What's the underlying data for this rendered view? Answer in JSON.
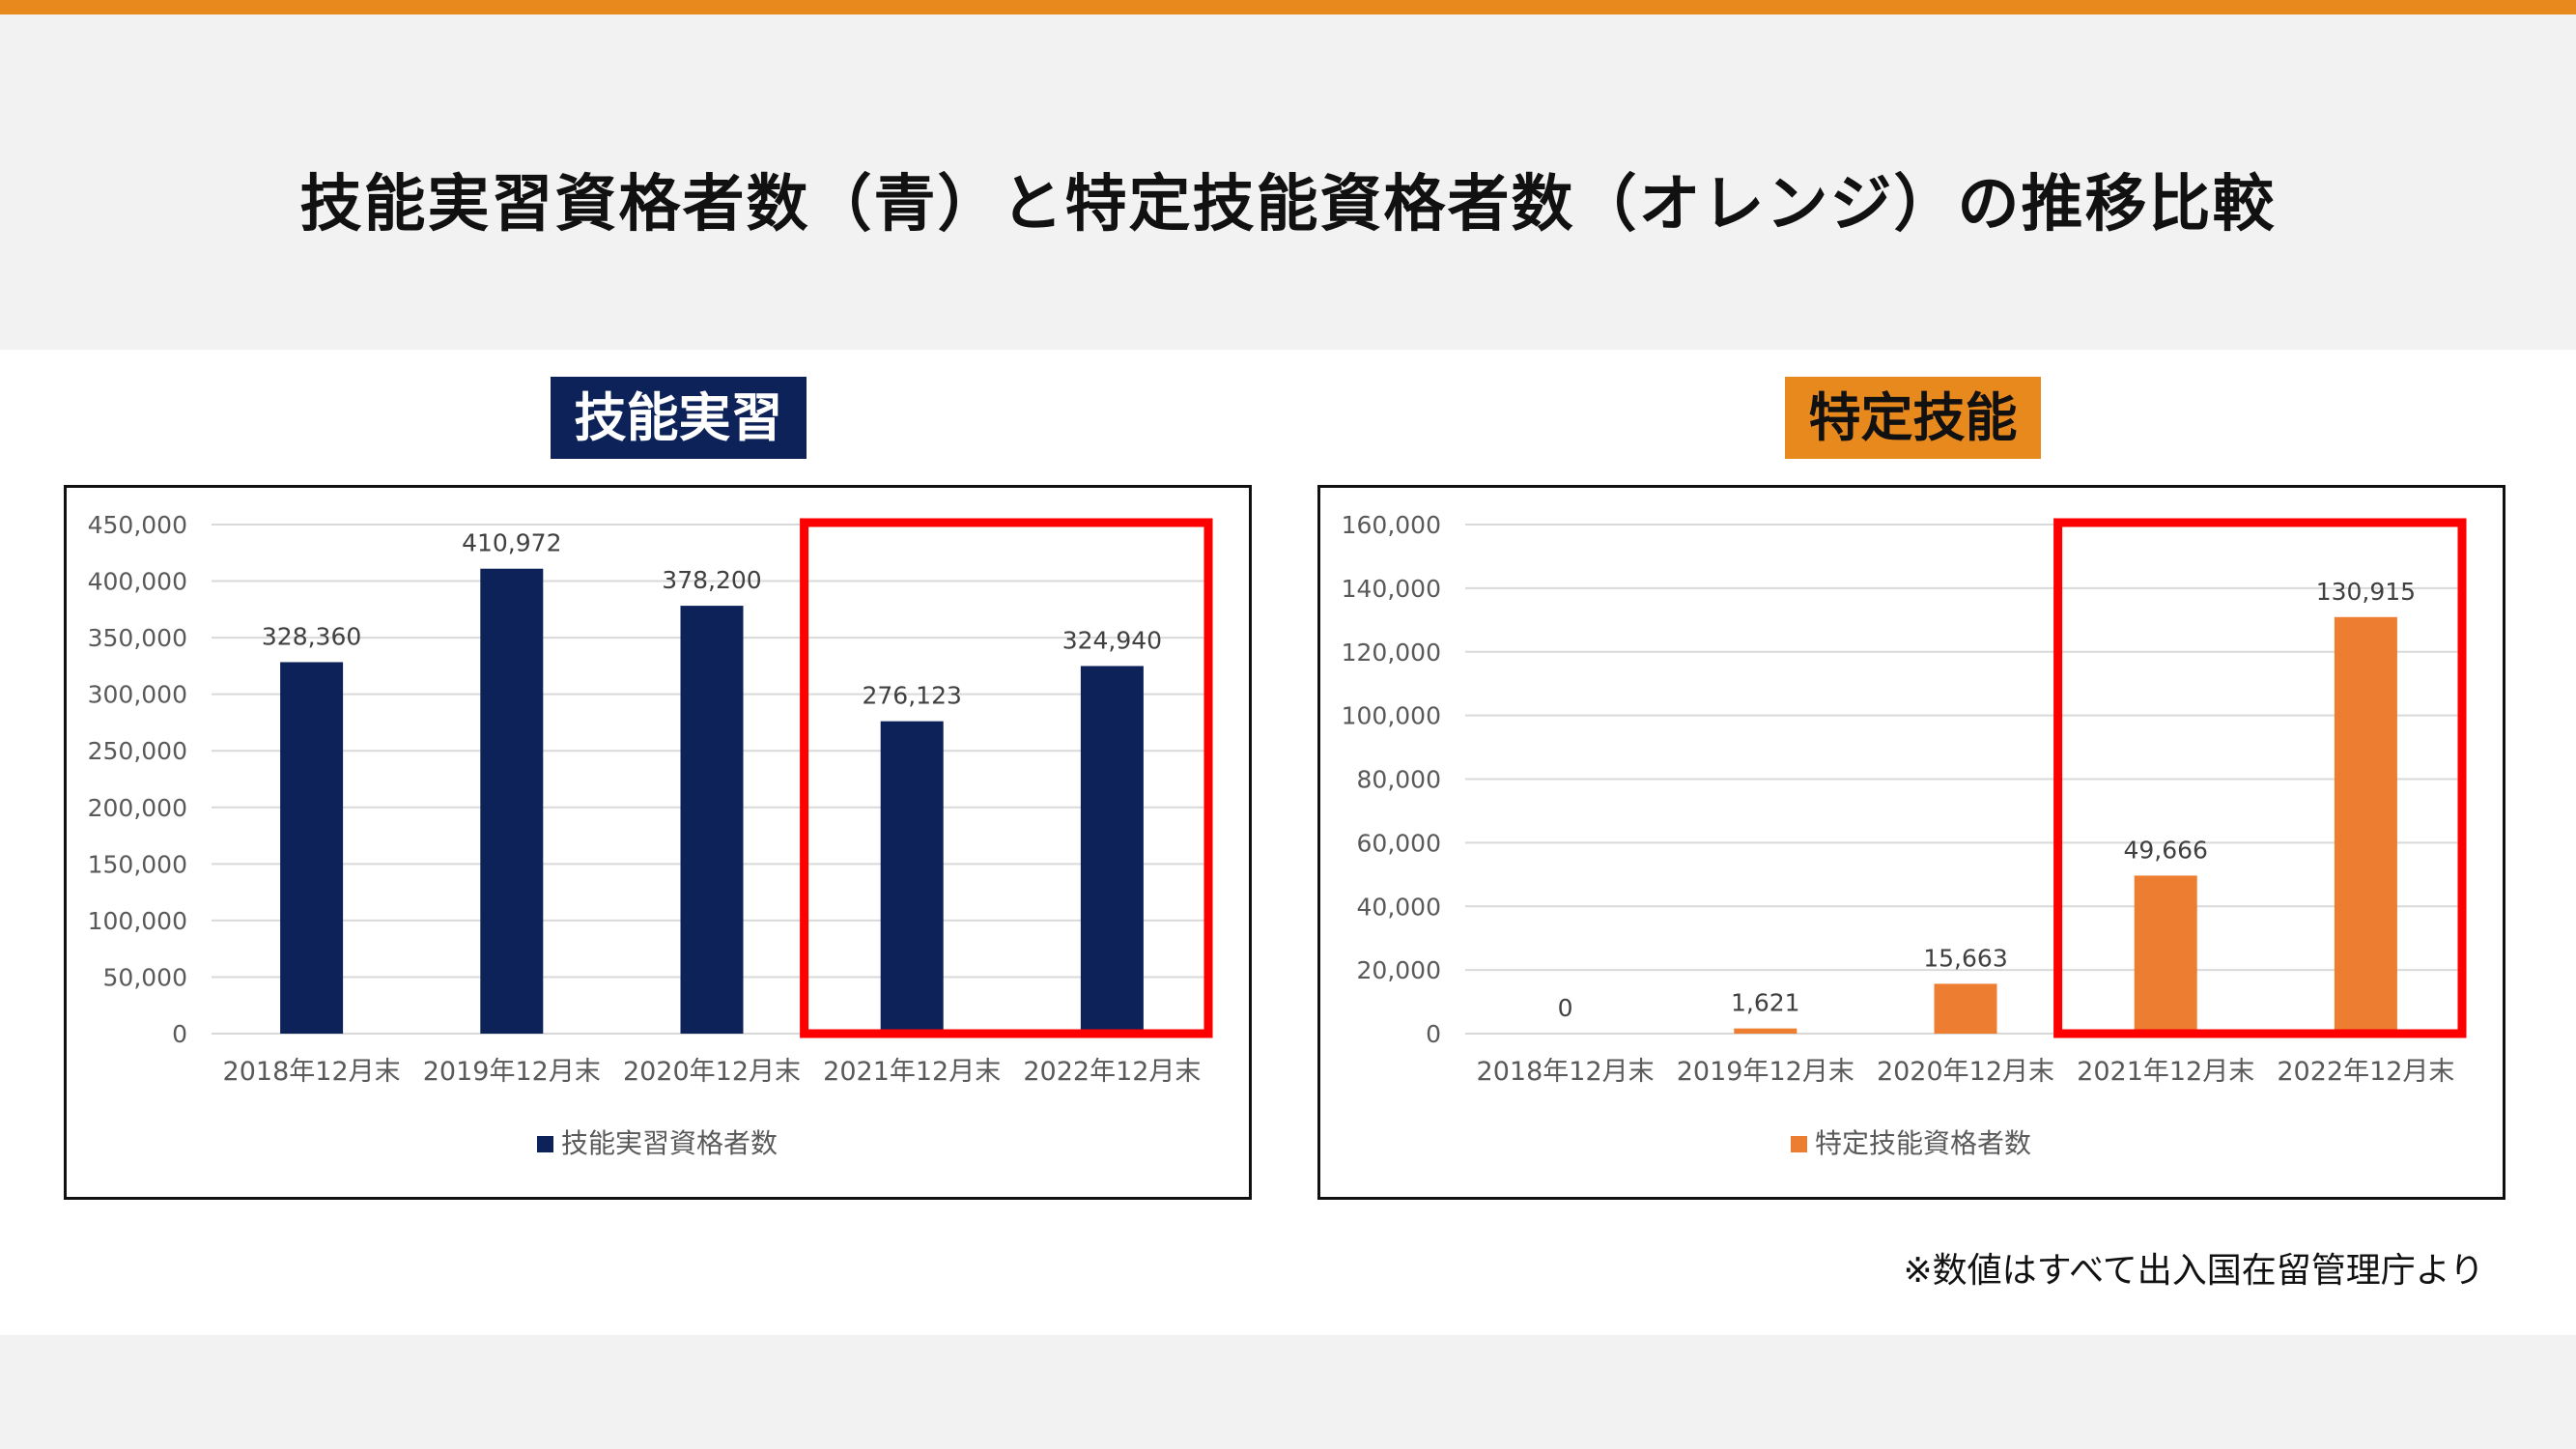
{
  "slide": {
    "title": "技能実習資格者数（青）と特定技能資格者数（オレンジ）の推移比較",
    "left_label": "技能実習",
    "right_label": "特定技能",
    "footnote": "※数値はすべて出入国在留管理庁より"
  },
  "colors": {
    "accent_orange": "#e8891d",
    "navy": "#0d2259",
    "bar_blue": "#0d2259",
    "bar_orange": "#ed7d31",
    "highlight_red": "#ff0000"
  },
  "chart_data": [
    {
      "type": "bar",
      "categories": [
        "2018年12月末",
        "2019年12月末",
        "2020年12月末",
        "2021年12月末",
        "2022年12月末"
      ],
      "series": [
        {
          "name": "技能実習資格者数",
          "values": [
            328360,
            410972,
            378200,
            276123,
            324940
          ],
          "color": "#0d2259"
        }
      ],
      "data_labels": [
        "328,360",
        "410,972",
        "378,200",
        "276,123",
        "324,940"
      ],
      "yticks": [
        "0",
        "50,000",
        "100,000",
        "150,000",
        "200,000",
        "250,000",
        "300,000",
        "350,000",
        "400,000",
        "450,000"
      ],
      "ylim": [
        0,
        450000
      ],
      "grid": true,
      "legend": "bottom",
      "highlight_categories": [
        "2021年12月末",
        "2022年12月末"
      ]
    },
    {
      "type": "bar",
      "categories": [
        "2018年12月末",
        "2019年12月末",
        "2020年12月末",
        "2021年12月末",
        "2022年12月末"
      ],
      "series": [
        {
          "name": "特定技能資格者数",
          "values": [
            0,
            1621,
            15663,
            49666,
            130915
          ],
          "color": "#ed7d31"
        }
      ],
      "data_labels": [
        "0",
        "1,621",
        "15,663",
        "49,666",
        "130,915"
      ],
      "yticks": [
        "0",
        "20,000",
        "40,000",
        "60,000",
        "80,000",
        "100,000",
        "120,000",
        "140,000",
        "160,000"
      ],
      "ylim": [
        0,
        160000
      ],
      "grid": true,
      "legend": "bottom",
      "highlight_categories": [
        "2021年12月末",
        "2022年12月末"
      ]
    }
  ]
}
